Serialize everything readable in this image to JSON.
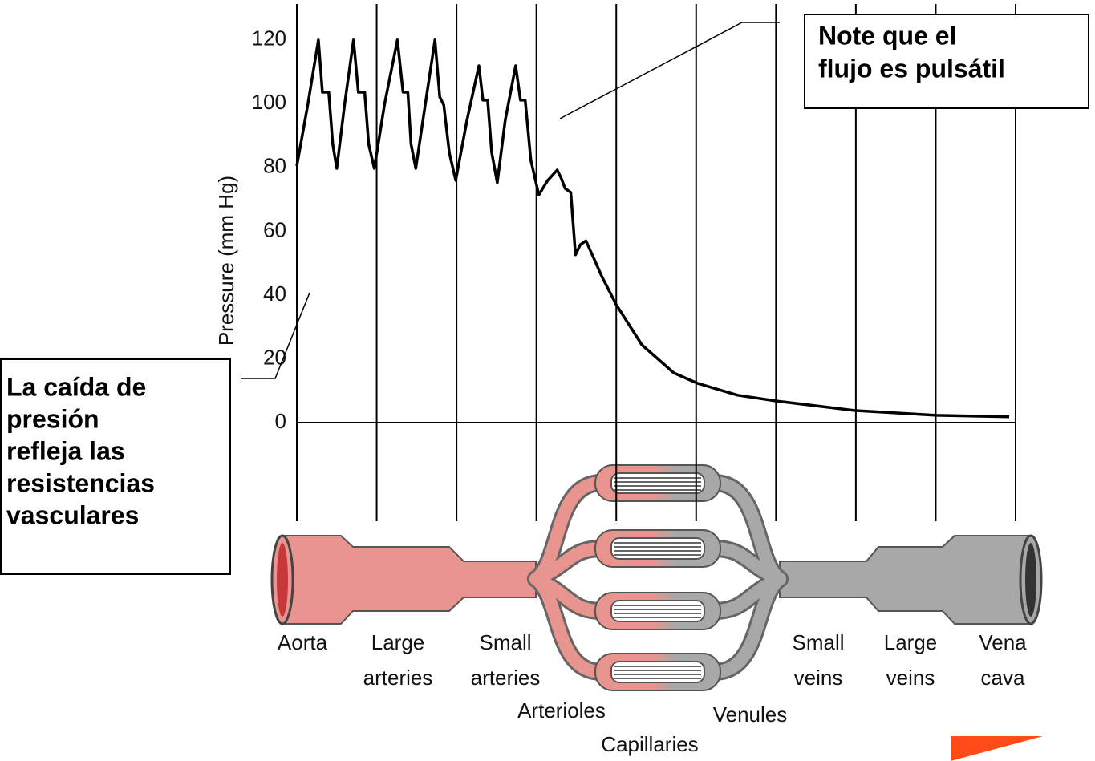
{
  "chart_data": {
    "type": "line",
    "y_label": "Pressure (mm Hg)",
    "categories": [
      "Aorta",
      "Large arteries",
      "Small arteries",
      "Arterioles",
      "Capillaries",
      "Venules",
      "Small veins",
      "Large veins",
      "Vena cava"
    ],
    "x": [
      0,
      0.14,
      0.27,
      0.32,
      0.4,
      0.45,
      0.5,
      0.6,
      0.71,
      0.77,
      0.85,
      0.9,
      0.97,
      1.1,
      1.26,
      1.33,
      1.39,
      1.43,
      1.49,
      1.61,
      1.73,
      1.79,
      1.84,
      1.91,
      1.99,
      2.13,
      2.28,
      2.33,
      2.39,
      2.44,
      2.51,
      2.61,
      2.74,
      2.8,
      2.86,
      2.93,
      3.03,
      3.14,
      3.26,
      3.31,
      3.36,
      3.43,
      3.49,
      3.55,
      3.62,
      3.71,
      3.82,
      4.0,
      4.32,
      4.72,
      5.02,
      5.52,
      6.0,
      6.98,
      8.01,
      8.92
    ],
    "values": [
      80.5,
      100,
      120,
      103.6,
      103.6,
      87.3,
      79.7,
      100,
      120,
      103.6,
      103.6,
      87.3,
      79.7,
      100,
      120,
      103.6,
      103.6,
      87.3,
      79.7,
      100,
      120,
      102.1,
      99.6,
      84.5,
      76,
      94.8,
      111.9,
      101.1,
      101.1,
      84.8,
      75.2,
      94.8,
      111.9,
      101.1,
      101.1,
      82.3,
      71.4,
      75.9,
      79.2,
      76.7,
      73.4,
      72.2,
      52.6,
      55.8,
      57,
      52,
      45.8,
      37,
      24.4,
      15.6,
      12.3,
      8.6,
      6.8,
      3.8,
      2.3,
      1.8
    ],
    "color": "#000000",
    "xlim": [
      0,
      9
    ],
    "ylim": [
      0,
      130
    ],
    "yticks": [
      0,
      20,
      40,
      60,
      80,
      100,
      120
    ],
    "grid": false,
    "annotations": [
      [
        "Note que el",
        "flujo es pulsátil"
      ],
      [
        "La caída de",
        "presión",
        "refleja las",
        "resistencias",
        "vasculares"
      ]
    ]
  }
}
